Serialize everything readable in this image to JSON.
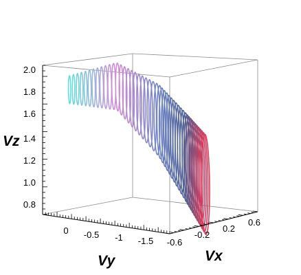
{
  "chart_data": {
    "type": "scatter",
    "subtype": "3d-parametric-ring-stack",
    "title": "",
    "axes": {
      "x": {
        "label": "Vx",
        "range": [
          -0.6,
          0.6
        ],
        "ticks": [
          "-0.6",
          "-0.2",
          "0.2",
          "0.6"
        ]
      },
      "y": {
        "label": "Vy",
        "range": [
          -2,
          0.2
        ],
        "ticks": [
          "0",
          "-0.5",
          "-1",
          "-1.5"
        ]
      },
      "z": {
        "label": "Vz",
        "range": [
          0.7,
          2.05
        ],
        "ticks": [
          "2.0",
          "1.8",
          "1.6",
          "1.4",
          "1.2",
          "1.0",
          "0.8"
        ]
      }
    },
    "grid": false,
    "colors": {
      "start": "#e03a5a",
      "mid_low": "#4f5f8f",
      "mid": "#6f86c8",
      "mid_high": "#d58ad8",
      "end": "#5fe0dc"
    },
    "series": [
      {
        "rings": 48,
        "points_per_ring": 44,
        "path": [
          {
            "t": 0.0,
            "vx": 0.32,
            "vy": -1.45,
            "vz": 0.95,
            "radius": 0.36
          },
          {
            "t": 0.25,
            "vx": 0.18,
            "vy": -1.3,
            "vz": 1.2,
            "radius": 0.32
          },
          {
            "t": 0.5,
            "vx": 0.0,
            "vy": -1.05,
            "vz": 1.55,
            "radius": 0.26
          },
          {
            "t": 0.75,
            "vx": -0.18,
            "vy": -0.55,
            "vz": 1.85,
            "radius": 0.17
          },
          {
            "t": 1.0,
            "vx": -0.35,
            "vy": 0.05,
            "vz": 1.8,
            "radius": 0.1
          }
        ]
      }
    ]
  }
}
